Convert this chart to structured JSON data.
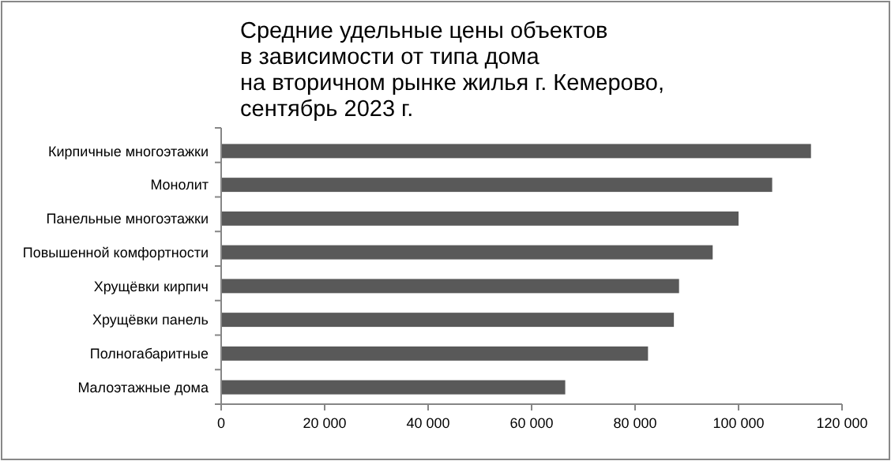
{
  "chart_data": {
    "type": "bar",
    "orientation": "horizontal",
    "title": "Средние удельные цены объектов\nв зависимости от типа дома\nна вторичном рынке жилья г. Кемерово,\nсентябрь 2023 г.",
    "categories": [
      "Кирпичные многоэтажки",
      "Монолит",
      "Панельные многоэтажки",
      "Повышенной комфортности",
      "Хрущёвки кирпич",
      "Хрущёвки панель",
      "Полногабаритные",
      "Малоэтажные дома"
    ],
    "values": [
      114000,
      106500,
      100000,
      95000,
      88500,
      87500,
      82500,
      66500
    ],
    "color": "#595959",
    "xlim": [
      0,
      120000
    ],
    "xticks": [
      0,
      {
        "value": 20000,
        "label": "20 000"
      },
      {
        "value": 40000,
        "label": "40 000"
      },
      {
        "value": 60000,
        "label": "60 000"
      },
      {
        "value": 80000,
        "label": "80 000"
      },
      {
        "value": 100000,
        "label": "100 000"
      },
      {
        "value": 120000,
        "label": "120 000"
      }
    ],
    "grid": false
  }
}
